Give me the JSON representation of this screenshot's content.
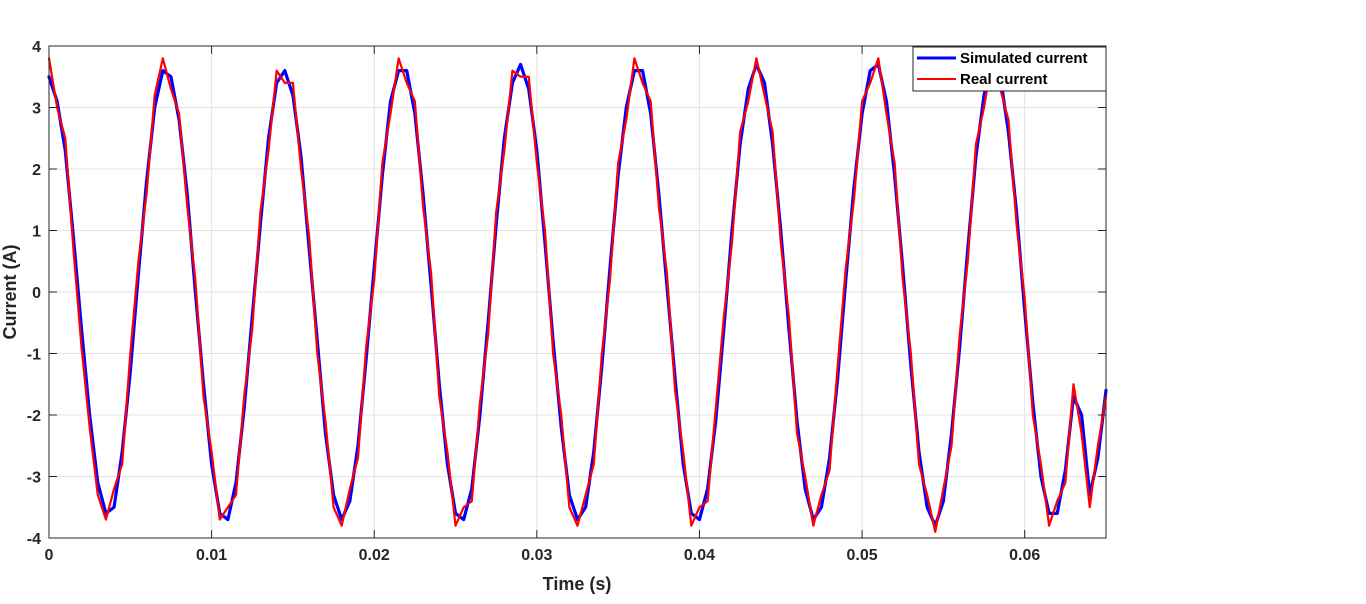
{
  "chart_data": {
    "type": "line",
    "title": "",
    "xlabel": "Time (s)",
    "ylabel": "Current (A)",
    "xlim": [
      0,
      0.065
    ],
    "ylim": [
      -4,
      4
    ],
    "x_ticks": [
      0,
      0.01,
      0.02,
      0.03,
      0.04,
      0.05,
      0.06
    ],
    "x_tick_labels": [
      "0",
      "0.01",
      "0.02",
      "0.03",
      "0.04",
      "0.05",
      "0.06"
    ],
    "y_ticks": [
      -4,
      -3,
      -2,
      -1,
      0,
      1,
      2,
      3,
      4
    ],
    "y_tick_labels": [
      "-4",
      "-3",
      "-2",
      "-1",
      "0",
      "1",
      "2",
      "3",
      "4"
    ],
    "grid": true,
    "legend_position": "top-right",
    "series": [
      {
        "name": "Simulated current",
        "color": "#0000ff",
        "points": [
          [
            0,
            3.5
          ],
          [
            0.0005,
            3.1
          ],
          [
            0.001,
            2.3
          ],
          [
            0.0015,
            0.9
          ],
          [
            0.002,
            -0.6
          ],
          [
            0.0025,
            -2.0
          ],
          [
            0.003,
            -3.1
          ],
          [
            0.0035,
            -3.6
          ],
          [
            0.004,
            -3.5
          ],
          [
            0.0045,
            -2.6
          ],
          [
            0.005,
            -1.3
          ],
          [
            0.0055,
            0.3
          ],
          [
            0.006,
            1.8
          ],
          [
            0.0065,
            3.0
          ],
          [
            0.007,
            3.6
          ],
          [
            0.0075,
            3.5
          ],
          [
            0.008,
            2.8
          ],
          [
            0.0085,
            1.6
          ],
          [
            0.009,
            0.0
          ],
          [
            0.0095,
            -1.5
          ],
          [
            0.01,
            -2.8
          ],
          [
            0.0105,
            -3.6
          ],
          [
            0.011,
            -3.7
          ],
          [
            0.0115,
            -3.1
          ],
          [
            0.012,
            -1.9
          ],
          [
            0.0125,
            -0.4
          ],
          [
            0.013,
            1.1
          ],
          [
            0.0135,
            2.5
          ],
          [
            0.014,
            3.4
          ],
          [
            0.0145,
            3.6
          ],
          [
            0.015,
            3.2
          ],
          [
            0.0155,
            2.2
          ],
          [
            0.016,
            0.7
          ],
          [
            0.0165,
            -0.8
          ],
          [
            0.017,
            -2.3
          ],
          [
            0.0175,
            -3.3
          ],
          [
            0.018,
            -3.7
          ],
          [
            0.0185,
            -3.4
          ],
          [
            0.019,
            -2.5
          ],
          [
            0.0195,
            -1.1
          ],
          [
            0.02,
            0.4
          ],
          [
            0.0205,
            1.9
          ],
          [
            0.021,
            3.1
          ],
          [
            0.0215,
            3.6
          ],
          [
            0.022,
            3.6
          ],
          [
            0.0225,
            2.9
          ],
          [
            0.023,
            1.6
          ],
          [
            0.0235,
            0.1
          ],
          [
            0.024,
            -1.5
          ],
          [
            0.0245,
            -2.8
          ],
          [
            0.025,
            -3.6
          ],
          [
            0.0255,
            -3.7
          ],
          [
            0.026,
            -3.2
          ],
          [
            0.0265,
            -2.0
          ],
          [
            0.027,
            -0.5
          ],
          [
            0.0275,
            1.1
          ],
          [
            0.028,
            2.5
          ],
          [
            0.0285,
            3.4
          ],
          [
            0.029,
            3.7
          ],
          [
            0.0295,
            3.3
          ],
          [
            0.03,
            2.3
          ],
          [
            0.0305,
            0.8
          ],
          [
            0.031,
            -0.8
          ],
          [
            0.0315,
            -2.2
          ],
          [
            0.032,
            -3.3
          ],
          [
            0.0325,
            -3.7
          ],
          [
            0.033,
            -3.5
          ],
          [
            0.0335,
            -2.6
          ],
          [
            0.034,
            -1.2
          ],
          [
            0.0345,
            0.4
          ],
          [
            0.035,
            1.9
          ],
          [
            0.0355,
            3.0
          ],
          [
            0.036,
            3.6
          ],
          [
            0.0365,
            3.6
          ],
          [
            0.037,
            2.9
          ],
          [
            0.0375,
            1.6
          ],
          [
            0.038,
            0.1
          ],
          [
            0.0385,
            -1.4
          ],
          [
            0.039,
            -2.8
          ],
          [
            0.0395,
            -3.6
          ],
          [
            0.04,
            -3.7
          ],
          [
            0.0405,
            -3.2
          ],
          [
            0.041,
            -2.1
          ],
          [
            0.0415,
            -0.6
          ],
          [
            0.042,
            1.0
          ],
          [
            0.0425,
            2.4
          ],
          [
            0.043,
            3.3
          ],
          [
            0.0435,
            3.7
          ],
          [
            0.044,
            3.4
          ],
          [
            0.0445,
            2.4
          ],
          [
            0.045,
            1.0
          ],
          [
            0.0455,
            -0.6
          ],
          [
            0.046,
            -2.1
          ],
          [
            0.0465,
            -3.2
          ],
          [
            0.047,
            -3.7
          ],
          [
            0.0475,
            -3.5
          ],
          [
            0.048,
            -2.7
          ],
          [
            0.0485,
            -1.4
          ],
          [
            0.049,
            0.2
          ],
          [
            0.0495,
            1.7
          ],
          [
            0.05,
            2.9
          ],
          [
            0.0505,
            3.6
          ],
          [
            0.051,
            3.7
          ],
          [
            0.0515,
            3.1
          ],
          [
            0.052,
            1.9
          ],
          [
            0.0525,
            0.4
          ],
          [
            0.053,
            -1.2
          ],
          [
            0.0535,
            -2.6
          ],
          [
            0.054,
            -3.5
          ],
          [
            0.0545,
            -3.8
          ],
          [
            0.055,
            -3.4
          ],
          [
            0.0555,
            -2.3
          ],
          [
            0.056,
            -0.9
          ],
          [
            0.0565,
            0.7
          ],
          [
            0.057,
            2.2
          ],
          [
            0.0575,
            3.2
          ],
          [
            0.058,
            3.7
          ],
          [
            0.0585,
            3.5
          ],
          [
            0.059,
            2.6
          ],
          [
            0.0595,
            1.3
          ],
          [
            0.06,
            -0.3
          ],
          [
            0.0605,
            -1.8
          ],
          [
            0.061,
            -3.0
          ],
          [
            0.0615,
            -3.6
          ],
          [
            0.062,
            -3.6
          ],
          [
            0.0625,
            -2.9
          ],
          [
            0.063,
            -1.7
          ],
          [
            0.0635,
            -2.0
          ],
          [
            0.064,
            -3.3
          ],
          [
            0.0645,
            -2.7
          ],
          [
            0.065,
            -1.6
          ]
        ]
      },
      {
        "name": "Real current",
        "color": "#ff0000",
        "points": [
          [
            0,
            3.8
          ],
          [
            0.0005,
            3.0
          ],
          [
            0.001,
            2.5
          ],
          [
            0.0015,
            0.7
          ],
          [
            0.002,
            -0.9
          ],
          [
            0.0025,
            -2.2
          ],
          [
            0.003,
            -3.3
          ],
          [
            0.0035,
            -3.7
          ],
          [
            0.004,
            -3.2
          ],
          [
            0.0045,
            -2.8
          ],
          [
            0.005,
            -1.0
          ],
          [
            0.0055,
            0.5
          ],
          [
            0.006,
            1.6
          ],
          [
            0.0065,
            3.2
          ],
          [
            0.007,
            3.8
          ],
          [
            0.0075,
            3.3
          ],
          [
            0.008,
            2.9
          ],
          [
            0.0085,
            1.4
          ],
          [
            0.009,
            0.2
          ],
          [
            0.0095,
            -1.7
          ],
          [
            0.01,
            -2.6
          ],
          [
            0.0105,
            -3.7
          ],
          [
            0.011,
            -3.5
          ],
          [
            0.0115,
            -3.3
          ],
          [
            0.012,
            -1.7
          ],
          [
            0.0125,
            -0.6
          ],
          [
            0.013,
            1.3
          ],
          [
            0.0135,
            2.3
          ],
          [
            0.014,
            3.6
          ],
          [
            0.0145,
            3.4
          ],
          [
            0.015,
            3.4
          ],
          [
            0.0155,
            2.0
          ],
          [
            0.016,
            0.9
          ],
          [
            0.0165,
            -1.0
          ],
          [
            0.017,
            -2.1
          ],
          [
            0.0175,
            -3.5
          ],
          [
            0.018,
            -3.8
          ],
          [
            0.0185,
            -3.2
          ],
          [
            0.019,
            -2.7
          ],
          [
            0.0195,
            -0.9
          ],
          [
            0.02,
            0.2
          ],
          [
            0.0205,
            2.1
          ],
          [
            0.021,
            2.9
          ],
          [
            0.0215,
            3.8
          ],
          [
            0.022,
            3.4
          ],
          [
            0.0225,
            3.1
          ],
          [
            0.023,
            1.4
          ],
          [
            0.0235,
            0.3
          ],
          [
            0.024,
            -1.7
          ],
          [
            0.0245,
            -2.6
          ],
          [
            0.025,
            -3.8
          ],
          [
            0.0255,
            -3.5
          ],
          [
            0.026,
            -3.4
          ],
          [
            0.0265,
            -1.8
          ],
          [
            0.027,
            -0.7
          ],
          [
            0.0275,
            1.3
          ],
          [
            0.028,
            2.3
          ],
          [
            0.0285,
            3.6
          ],
          [
            0.029,
            3.5
          ],
          [
            0.0295,
            3.5
          ],
          [
            0.03,
            2.1
          ],
          [
            0.0305,
            1.0
          ],
          [
            0.031,
            -1.0
          ],
          [
            0.0315,
            -2.0
          ],
          [
            0.032,
            -3.5
          ],
          [
            0.0325,
            -3.8
          ],
          [
            0.033,
            -3.3
          ],
          [
            0.0335,
            -2.8
          ],
          [
            0.034,
            -1.0
          ],
          [
            0.0345,
            0.2
          ],
          [
            0.035,
            2.1
          ],
          [
            0.0355,
            2.8
          ],
          [
            0.036,
            3.8
          ],
          [
            0.0365,
            3.4
          ],
          [
            0.037,
            3.1
          ],
          [
            0.0375,
            1.4
          ],
          [
            0.038,
            0.3
          ],
          [
            0.0385,
            -1.6
          ],
          [
            0.039,
            -2.6
          ],
          [
            0.0395,
            -3.8
          ],
          [
            0.04,
            -3.5
          ],
          [
            0.0405,
            -3.4
          ],
          [
            0.041,
            -1.9
          ],
          [
            0.0415,
            -0.4
          ],
          [
            0.042,
            0.8
          ],
          [
            0.0425,
            2.6
          ],
          [
            0.043,
            3.1
          ],
          [
            0.0435,
            3.8
          ],
          [
            0.044,
            3.2
          ],
          [
            0.0445,
            2.6
          ],
          [
            0.045,
            0.8
          ],
          [
            0.0455,
            -0.4
          ],
          [
            0.046,
            -2.3
          ],
          [
            0.0465,
            -3.0
          ],
          [
            0.047,
            -3.8
          ],
          [
            0.0475,
            -3.3
          ],
          [
            0.048,
            -2.9
          ],
          [
            0.0485,
            -1.2
          ],
          [
            0.049,
            0.4
          ],
          [
            0.0495,
            1.5
          ],
          [
            0.05,
            3.1
          ],
          [
            0.0505,
            3.4
          ],
          [
            0.051,
            3.8
          ],
          [
            0.0515,
            2.9
          ],
          [
            0.052,
            2.1
          ],
          [
            0.0525,
            0.2
          ],
          [
            0.053,
            -1.0
          ],
          [
            0.0535,
            -2.8
          ],
          [
            0.054,
            -3.3
          ],
          [
            0.0545,
            -3.9
          ],
          [
            0.055,
            -3.2
          ],
          [
            0.0555,
            -2.5
          ],
          [
            0.056,
            -0.7
          ],
          [
            0.0565,
            0.5
          ],
          [
            0.057,
            2.4
          ],
          [
            0.0575,
            3.0
          ],
          [
            0.058,
            3.8
          ],
          [
            0.0585,
            3.3
          ],
          [
            0.059,
            2.8
          ],
          [
            0.0595,
            1.1
          ],
          [
            0.06,
            -0.1
          ],
          [
            0.0605,
            -2.0
          ],
          [
            0.061,
            -2.8
          ],
          [
            0.0615,
            -3.8
          ],
          [
            0.062,
            -3.4
          ],
          [
            0.0625,
            -3.1
          ],
          [
            0.063,
            -1.5
          ],
          [
            0.0635,
            -2.3
          ],
          [
            0.064,
            -3.5
          ],
          [
            0.0645,
            -2.5
          ],
          [
            0.065,
            -1.7
          ]
        ]
      }
    ]
  }
}
